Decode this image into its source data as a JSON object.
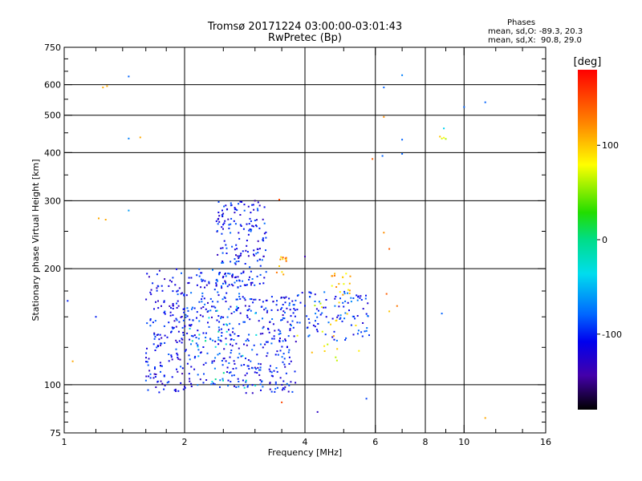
{
  "header": {
    "title_line1": "Tromsø 20171224 03:00:00-03:01:43",
    "title_line2": "RwPretec (Bp)"
  },
  "phases": {
    "heading": "Phases",
    "line_o": "mean, sd,O: -89.3, 20.3",
    "line_x": "mean, sd,X:  90.8, 29.0"
  },
  "chart_data": {
    "type": "scatter",
    "xlabel": "Frequency [MHz]",
    "ylabel": "Stationary phase Virtual Height [km]",
    "x_scale": "log",
    "y_scale": "log",
    "xlim": [
      1,
      16
    ],
    "ylim": [
      75,
      750
    ],
    "x_ticks": [
      1,
      2,
      4,
      6,
      8,
      10,
      16
    ],
    "x_tick_labels": [
      "1",
      "2",
      "4",
      "6",
      "8",
      "10",
      "16"
    ],
    "x_gridlines": [
      2,
      4,
      6,
      8,
      10
    ],
    "y_ticks": [
      75,
      100,
      200,
      300,
      400,
      500,
      600,
      750
    ],
    "y_tick_labels": [
      "75",
      "100",
      "200",
      "300",
      "400",
      "500",
      "600",
      "750"
    ],
    "y_gridlines": [
      100,
      200,
      300,
      400,
      500,
      600
    ],
    "grid": true,
    "colorbar": {
      "label": "[deg]",
      "range": [
        -180,
        180
      ],
      "ticks": [
        100,
        0,
        -100
      ],
      "tick_labels": [
        "100",
        "0",
        "-100"
      ]
    },
    "clusters": [
      {
        "f": [
          1.6,
          2.0
        ],
        "h": [
          95,
          200
        ],
        "phase": -110,
        "count": 170
      },
      {
        "f": [
          2.0,
          2.8
        ],
        "h": [
          98,
          200
        ],
        "phase": -100,
        "count": 240
      },
      {
        "f": [
          2.4,
          3.2
        ],
        "h": [
          180,
          300
        ],
        "phase": -105,
        "count": 180
      },
      {
        "f": [
          2.8,
          3.8
        ],
        "h": [
          95,
          170
        ],
        "phase": -105,
        "count": 200
      },
      {
        "f": [
          3.6,
          5.8
        ],
        "h": [
          130,
          175
        ],
        "phase": -95,
        "count": 110
      },
      {
        "f": [
          3.4,
          3.6
        ],
        "h": [
          190,
          215
        ],
        "phase": 120,
        "count": 12
      },
      {
        "f": [
          4.6,
          5.2
        ],
        "h": [
          170,
          195
        ],
        "phase": 100,
        "count": 18
      },
      {
        "f": [
          3.8,
          5.5
        ],
        "h": [
          115,
          165
        ],
        "phase": 90,
        "count": 20
      },
      {
        "f": [
          2.0,
          3.2
        ],
        "h": [
          98,
          160
        ],
        "phase": -30,
        "count": 25
      }
    ],
    "isolated_points": [
      {
        "f": 1.25,
        "h": 590,
        "phase": 110
      },
      {
        "f": 1.28,
        "h": 595,
        "phase": 110
      },
      {
        "f": 1.45,
        "h": 630,
        "phase": -80
      },
      {
        "f": 1.45,
        "h": 435,
        "phase": -70
      },
      {
        "f": 1.55,
        "h": 438,
        "phase": 110
      },
      {
        "f": 1.45,
        "h": 283,
        "phase": -60
      },
      {
        "f": 1.22,
        "h": 270,
        "phase": 110
      },
      {
        "f": 1.27,
        "h": 268,
        "phase": 110
      },
      {
        "f": 1.05,
        "h": 115,
        "phase": 110
      },
      {
        "f": 1.02,
        "h": 165,
        "phase": -100
      },
      {
        "f": 1.2,
        "h": 150,
        "phase": -100
      },
      {
        "f": 6.3,
        "h": 590,
        "phase": -80
      },
      {
        "f": 6.3,
        "h": 495,
        "phase": 120
      },
      {
        "f": 7.0,
        "h": 635,
        "phase": -70
      },
      {
        "f": 7.0,
        "h": 432,
        "phase": -80
      },
      {
        "f": 6.25,
        "h": 392,
        "phase": -80
      },
      {
        "f": 7.0,
        "h": 397,
        "phase": -80
      },
      {
        "f": 5.9,
        "h": 385,
        "phase": 140
      },
      {
        "f": 8.7,
        "h": 440,
        "phase": 100
      },
      {
        "f": 8.8,
        "h": 435,
        "phase": 70
      },
      {
        "f": 8.9,
        "h": 437,
        "phase": 80
      },
      {
        "f": 8.9,
        "h": 462,
        "phase": -40
      },
      {
        "f": 9.0,
        "h": 434,
        "phase": 60
      },
      {
        "f": 10.0,
        "h": 525,
        "phase": -80
      },
      {
        "f": 11.3,
        "h": 540,
        "phase": -80
      },
      {
        "f": 6.3,
        "h": 248,
        "phase": 120
      },
      {
        "f": 6.5,
        "h": 225,
        "phase": 140
      },
      {
        "f": 4.0,
        "h": 215,
        "phase": -140
      },
      {
        "f": 3.0,
        "h": 300,
        "phase": -150
      },
      {
        "f": 3.45,
        "h": 302,
        "phase": 150
      },
      {
        "f": 8.8,
        "h": 153,
        "phase": -80
      },
      {
        "f": 11.3,
        "h": 82,
        "phase": 110
      },
      {
        "f": 4.3,
        "h": 85,
        "phase": -130
      },
      {
        "f": 5.7,
        "h": 92,
        "phase": -90
      },
      {
        "f": 3.5,
        "h": 90,
        "phase": 150
      },
      {
        "f": 6.4,
        "h": 172,
        "phase": 140
      },
      {
        "f": 6.8,
        "h": 160,
        "phase": 130
      },
      {
        "f": 6.5,
        "h": 155,
        "phase": 100
      }
    ]
  },
  "colors": {
    "axis": "#000000",
    "background": "#ffffff"
  }
}
